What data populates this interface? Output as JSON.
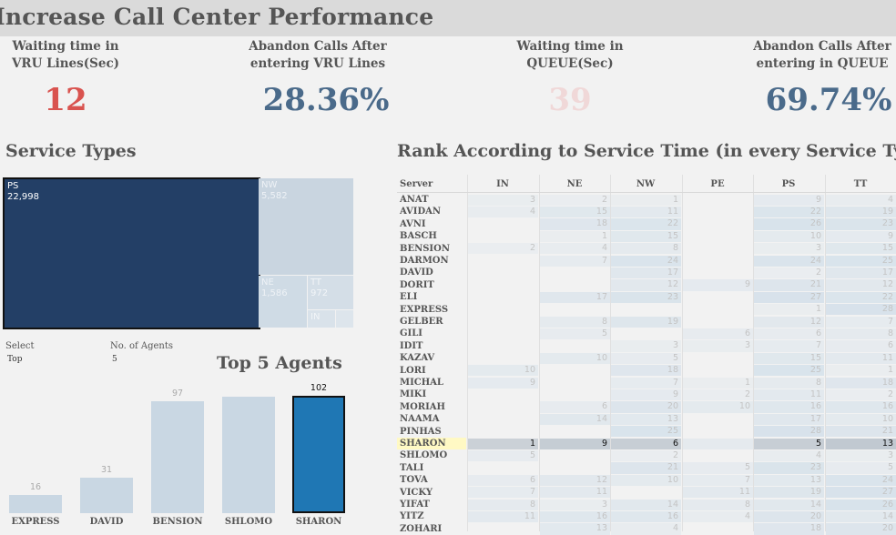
{
  "title": "Increase Call Center Performance",
  "kpis": [
    {
      "label_line1": "Waiting time in",
      "label_line2": "VRU Lines(Sec)",
      "value": "12",
      "color": "#d9534f"
    },
    {
      "label_line1": "Abandon Calls After",
      "label_line2": "entering VRU Lines",
      "value": "28.36%",
      "color": "#4a6a8a"
    },
    {
      "label_line1": "Waiting time in",
      "label_line2": "QUEUE(Sec)",
      "value": "39",
      "color": "#f0d8d8"
    },
    {
      "label_line1": "Abandon Calls After",
      "label_line2": "entering in QUEUE",
      "value": "69.74%",
      "color": "#4a6a8a"
    }
  ],
  "service_types": {
    "title": "Service Types",
    "items": [
      {
        "code": "PS",
        "value": "22,998"
      },
      {
        "code": "NW",
        "value": "5,582"
      },
      {
        "code": "NE",
        "value": "1,586"
      },
      {
        "code": "TT",
        "value": "972"
      },
      {
        "code": "IN",
        "value": ""
      }
    ]
  },
  "controls": {
    "select_label": "Select",
    "select_value": "Top",
    "agents_label": "No. of Agents",
    "agents_value": "5"
  },
  "top_agents": {
    "title": "Top 5 Agents",
    "categories": [
      "EXPRESS",
      "DAVID",
      "BENSION",
      "SHLOMO",
      "SHARON"
    ],
    "values": [
      16,
      31,
      97,
      null,
      102
    ],
    "value_labels": [
      "16",
      "31",
      "97",
      "",
      "102"
    ],
    "approx_values": [
      16,
      31,
      97,
      101,
      102
    ],
    "highlighted": "SHARON",
    "ylim": [
      0,
      110
    ]
  },
  "rank": {
    "title": "Rank According to Service Time (in every Service Type)",
    "server_header": "Server",
    "columns": [
      "IN",
      "NE",
      "NW",
      "PE",
      "PS",
      "TT"
    ],
    "highlighted_row": "SHARON",
    "rows": [
      {
        "name": "ANAT",
        "cells": [
          "3",
          "2",
          "1",
          "",
          "9",
          "4"
        ]
      },
      {
        "name": "AVIDAN",
        "cells": [
          "4",
          "15",
          "11",
          "",
          "22",
          "19"
        ]
      },
      {
        "name": "AVNI",
        "cells": [
          "",
          "18",
          "22",
          "",
          "26",
          "23"
        ]
      },
      {
        "name": "BASCH",
        "cells": [
          "",
          "1",
          "15",
          "",
          "10",
          "9"
        ]
      },
      {
        "name": "BENSION",
        "cells": [
          "2",
          "4",
          "8",
          "",
          "3",
          "15"
        ]
      },
      {
        "name": "DARMON",
        "cells": [
          "",
          "7",
          "24",
          "",
          "24",
          "25"
        ]
      },
      {
        "name": "DAVID",
        "cells": [
          "",
          "",
          "17",
          "",
          "2",
          "17"
        ]
      },
      {
        "name": "DORIT",
        "cells": [
          "",
          "",
          "12",
          "9",
          "21",
          "12"
        ]
      },
      {
        "name": "ELI",
        "cells": [
          "",
          "17",
          "23",
          "",
          "27",
          "22"
        ]
      },
      {
        "name": "EXPRESS",
        "cells": [
          "",
          "",
          "",
          "",
          "1",
          "28"
        ]
      },
      {
        "name": "GELBER",
        "cells": [
          "",
          "8",
          "19",
          "",
          "12",
          "7"
        ]
      },
      {
        "name": "GILI",
        "cells": [
          "",
          "5",
          "",
          "6",
          "6",
          "8"
        ]
      },
      {
        "name": "IDIT",
        "cells": [
          "",
          "",
          "3",
          "3",
          "7",
          "6"
        ]
      },
      {
        "name": "KAZAV",
        "cells": [
          "",
          "10",
          "5",
          "",
          "15",
          "11"
        ]
      },
      {
        "name": "LORI",
        "cells": [
          "10",
          "",
          "18",
          "",
          "25",
          "1"
        ]
      },
      {
        "name": "MICHAL",
        "cells": [
          "9",
          "",
          "7",
          "1",
          "8",
          "18"
        ]
      },
      {
        "name": "MIKI",
        "cells": [
          "",
          "",
          "9",
          "2",
          "11",
          "2"
        ]
      },
      {
        "name": "MORIAH",
        "cells": [
          "",
          "6",
          "20",
          "10",
          "16",
          "16"
        ]
      },
      {
        "name": "NAAMA",
        "cells": [
          "",
          "14",
          "13",
          "",
          "17",
          "10"
        ]
      },
      {
        "name": "PINHAS",
        "cells": [
          "",
          "",
          "25",
          "",
          "28",
          "21"
        ]
      },
      {
        "name": "SHARON",
        "cells": [
          "1",
          "9",
          "6",
          "",
          "5",
          "13"
        ]
      },
      {
        "name": "SHLOMO",
        "cells": [
          "5",
          "",
          "2",
          "",
          "4",
          "3"
        ]
      },
      {
        "name": "TALI",
        "cells": [
          "",
          "",
          "21",
          "5",
          "23",
          "5"
        ]
      },
      {
        "name": "TOVA",
        "cells": [
          "6",
          "12",
          "10",
          "7",
          "13",
          "24"
        ]
      },
      {
        "name": "VICKY",
        "cells": [
          "7",
          "11",
          "",
          "11",
          "19",
          "27"
        ]
      },
      {
        "name": "YIFAT",
        "cells": [
          "8",
          "3",
          "14",
          "8",
          "14",
          "26"
        ]
      },
      {
        "name": "YITZ",
        "cells": [
          "11",
          "16",
          "16",
          "4",
          "20",
          "14"
        ]
      },
      {
        "name": "ZOHARI",
        "cells": [
          "",
          "13",
          "4",
          "",
          "18",
          "20"
        ]
      }
    ]
  },
  "colors": {
    "treemap_primary": "#233f66",
    "bar_default": "#c9d7e3",
    "bar_highlight": "#1f77b4",
    "row_highlight": "#fff9c4"
  }
}
